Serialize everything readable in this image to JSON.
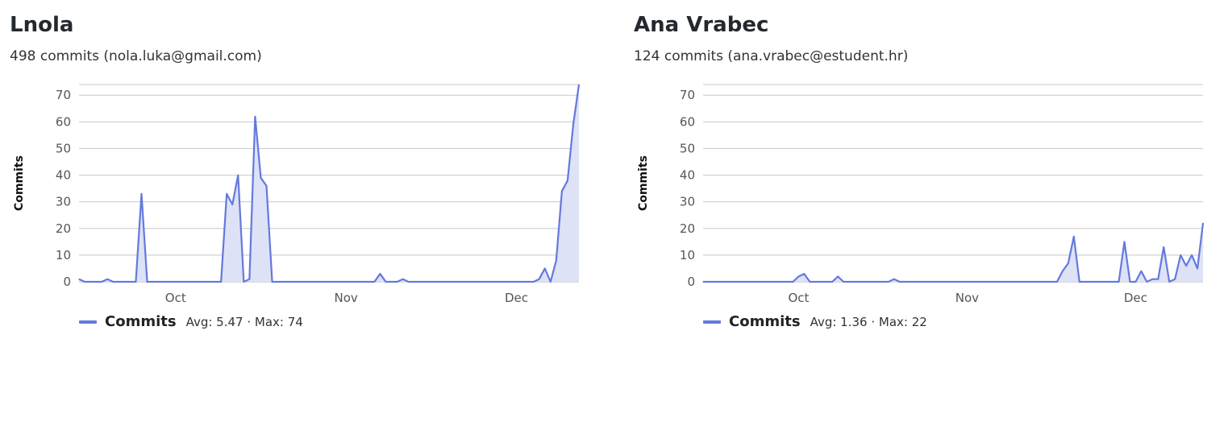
{
  "accent": "#6479dd",
  "fill": "#dde2f7",
  "cards": [
    {
      "name": "Lnola",
      "summary": "498 commits (nola.luka@gmail.com)",
      "legend": {
        "label": "Commits",
        "stats": "Avg: 5.47 · Max: 74"
      },
      "chart_data": {
        "type": "area",
        "ylabel": "Commits",
        "ylim": [
          0,
          74
        ],
        "yticks": [
          0,
          10,
          20,
          30,
          40,
          50,
          60,
          70
        ],
        "x_ticks": [
          {
            "label": "Oct",
            "index": 17
          },
          {
            "label": "Nov",
            "index": 47
          },
          {
            "label": "Dec",
            "index": 77
          }
        ],
        "grid": true,
        "legend_position": "bottom-left",
        "series": [
          {
            "name": "Commits",
            "values": [
              1,
              0,
              0,
              0,
              0,
              1,
              0,
              0,
              0,
              0,
              0,
              33,
              0,
              0,
              0,
              0,
              0,
              0,
              0,
              0,
              0,
              0,
              0,
              0,
              0,
              0,
              33,
              29,
              40,
              0,
              1,
              62,
              39,
              36,
              0,
              0,
              0,
              0,
              0,
              0,
              0,
              0,
              0,
              0,
              0,
              0,
              0,
              0,
              0,
              0,
              0,
              0,
              0,
              3,
              0,
              0,
              0,
              1,
              0,
              0,
              0,
              0,
              0,
              0,
              0,
              0,
              0,
              0,
              0,
              0,
              0,
              0,
              0,
              0,
              0,
              0,
              0,
              0,
              0,
              0,
              0,
              1,
              5,
              0,
              8,
              34,
              38,
              59,
              74
            ]
          }
        ]
      }
    },
    {
      "name": "Ana Vrabec",
      "summary": "124 commits (ana.vrabec@estudent.hr)",
      "legend": {
        "label": "Commits",
        "stats": "Avg: 1.36 · Max: 22"
      },
      "chart_data": {
        "type": "area",
        "ylabel": "Commits",
        "ylim": [
          0,
          74
        ],
        "yticks": [
          0,
          10,
          20,
          30,
          40,
          50,
          60,
          70
        ],
        "x_ticks": [
          {
            "label": "Oct",
            "index": 17
          },
          {
            "label": "Nov",
            "index": 47
          },
          {
            "label": "Dec",
            "index": 77
          }
        ],
        "grid": true,
        "legend_position": "bottom-left",
        "series": [
          {
            "name": "Commits",
            "values": [
              0,
              0,
              0,
              0,
              0,
              0,
              0,
              0,
              0,
              0,
              0,
              0,
              0,
              0,
              0,
              0,
              0,
              2,
              3,
              0,
              0,
              0,
              0,
              0,
              2,
              0,
              0,
              0,
              0,
              0,
              0,
              0,
              0,
              0,
              1,
              0,
              0,
              0,
              0,
              0,
              0,
              0,
              0,
              0,
              0,
              0,
              0,
              0,
              0,
              0,
              0,
              0,
              0,
              0,
              0,
              0,
              0,
              0,
              0,
              0,
              0,
              0,
              0,
              0,
              4,
              7,
              17,
              0,
              0,
              0,
              0,
              0,
              0,
              0,
              0,
              15,
              0,
              0,
              4,
              0,
              1,
              1,
              13,
              0,
              1,
              10,
              6,
              10,
              5,
              22
            ]
          }
        ]
      }
    }
  ]
}
